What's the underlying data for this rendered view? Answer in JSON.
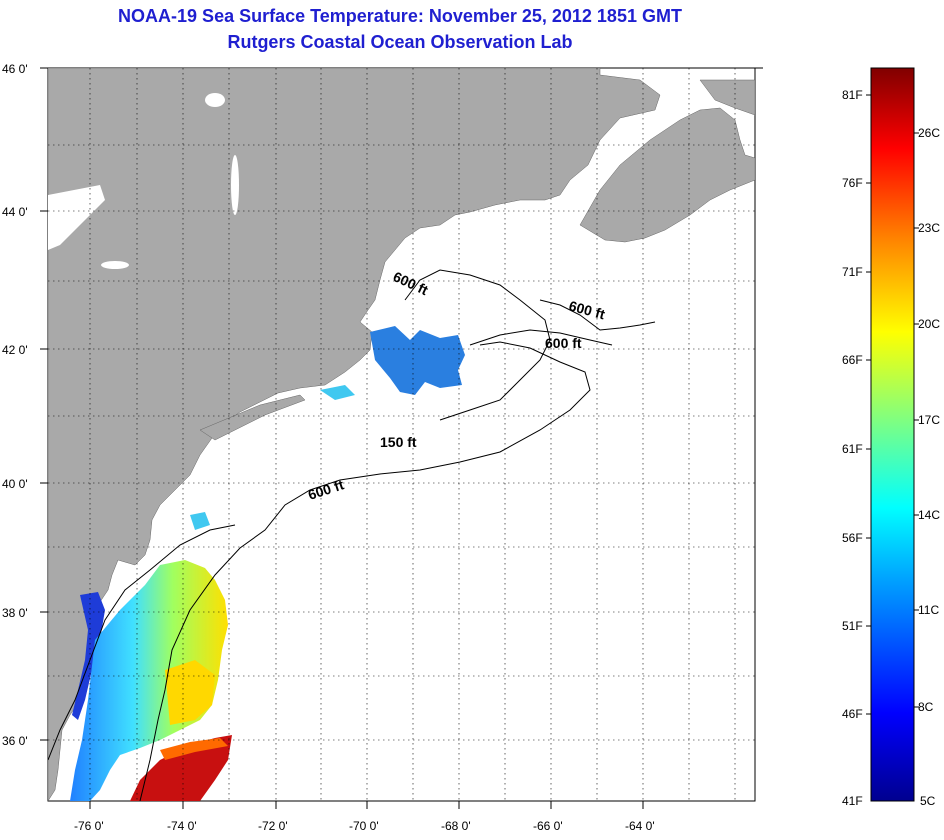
{
  "title_line1": "NOAA-19 Sea Surface Temperature:  November 25, 2012 1851 GMT",
  "title_line2": "Rutgers Coastal Ocean Observation Lab",
  "map": {
    "lat_ticks": [
      "46 0'",
      "44 0'",
      "42 0'",
      "40 0'",
      "38 0'",
      "36 0'"
    ],
    "lon_ticks": [
      "-76 0'",
      "-74 0'",
      "-72 0'",
      "-70 0'",
      "-68 0'",
      "-66 0'",
      "-64 0'"
    ],
    "contour_labels": [
      "600 ft",
      "600 ft",
      "600 ft",
      "150 ft",
      "600 ft"
    ],
    "colors": {
      "land": "#a9a9a9",
      "ocean": "#ffffff",
      "grid": "#000000"
    }
  },
  "colorbar": {
    "fahrenheit_labels": [
      "81F",
      "76F",
      "71F",
      "66F",
      "61F",
      "56F",
      "51F",
      "46F",
      "41F"
    ],
    "celsius_labels": [
      "26C",
      "23C",
      "20C",
      "17C",
      "14C",
      "11C",
      "8C",
      "5C"
    ],
    "stops": [
      "#00008f",
      "#0000ff",
      "#00a0ff",
      "#00ffff",
      "#80ff80",
      "#ffff00",
      "#ff8000",
      "#ff0000",
      "#800000"
    ]
  }
}
